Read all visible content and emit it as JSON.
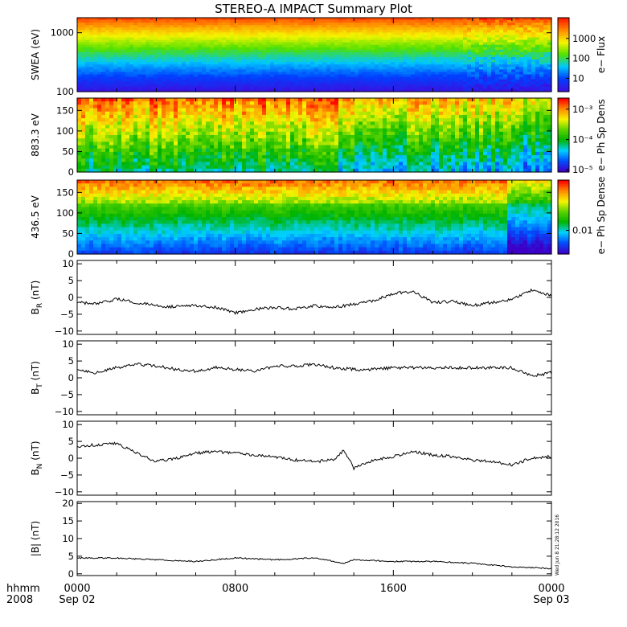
{
  "chart_data": {
    "title": "STEREO-A IMPACT Summary Plot",
    "stamp": "Wed Jun  8 21:28:12 2016",
    "x_corner": [
      "hhmm",
      "2008"
    ],
    "x_ticks": [
      {
        "hour": 0,
        "label": "0000",
        "sublabel": "Sep 02"
      },
      {
        "hour": 8,
        "label": "0800",
        "sublabel": ""
      },
      {
        "hour": 16,
        "label": "1600",
        "sublabel": ""
      },
      {
        "hour": 24,
        "label": "0000",
        "sublabel": "Sep 03"
      }
    ],
    "x_range_hours": [
      0,
      24
    ],
    "panels": [
      {
        "id": "swea",
        "type": "heatmap",
        "ylabel": "SWEA (eV)",
        "ylog": true,
        "ylim": [
          100,
          1800
        ],
        "yticks": [
          "1000",
          "100"
        ],
        "ytick_values": [
          1000,
          100
        ],
        "colorbar": {
          "label": "e− Flux",
          "ticks": [
            "1000",
            "100",
            "10"
          ],
          "tick_fractions": [
            0.72,
            0.45,
            0.18
          ]
        },
        "color_stops": [
          "#ff2a00",
          "#ff8a00",
          "#f0f000",
          "#4cf000",
          "#00c8ff",
          "#0040ff",
          "#3c10f0"
        ]
      },
      {
        "id": "pad883",
        "type": "heatmap",
        "ylabel": "883.3 eV",
        "ylim": [
          0,
          180
        ],
        "yticks": [
          "150",
          "100",
          "50",
          "0"
        ],
        "ytick_values": [
          150,
          100,
          50,
          0
        ],
        "colorbar": {
          "label": "e− Ph Sp Dens",
          "ticks": [
            "10⁻³",
            "10⁻⁴",
            "10⁻⁵"
          ],
          "tick_fractions": [
            0.85,
            0.44,
            0.03
          ]
        }
      },
      {
        "id": "pad436",
        "type": "heatmap",
        "ylabel": "436.5 eV",
        "ylim": [
          0,
          180
        ],
        "yticks": [
          "150",
          "100",
          "50",
          "0"
        ],
        "ytick_values": [
          150,
          100,
          50,
          0
        ],
        "colorbar": {
          "label": "e− Ph Sp Dense",
          "ticks": [
            "0.01"
          ],
          "tick_fractions": [
            0.32
          ]
        }
      },
      {
        "id": "br",
        "type": "line",
        "ylabel_base": "B",
        "ylabel_sub": "R",
        "ylabel_unit": " (nT)",
        "ylim": [
          -11,
          11
        ],
        "yticks": [
          "10",
          "5",
          "0",
          "−5",
          "−10"
        ],
        "ytick_values": [
          10,
          5,
          0,
          -5,
          -10
        ],
        "keypoints": [
          [
            0,
            -1.5
          ],
          [
            1,
            -2
          ],
          [
            2,
            -0.5
          ],
          [
            3,
            -1.5
          ],
          [
            4,
            -2.5
          ],
          [
            5,
            -2.8
          ],
          [
            6,
            -2.3
          ],
          [
            7,
            -3
          ],
          [
            8,
            -4.5
          ],
          [
            9,
            -3.5
          ],
          [
            10,
            -3
          ],
          [
            11,
            -3.5
          ],
          [
            12,
            -2.5
          ],
          [
            13,
            -3
          ],
          [
            14,
            -2
          ],
          [
            15,
            -1
          ],
          [
            16,
            1.2
          ],
          [
            17,
            1.8
          ],
          [
            18,
            -1.5
          ],
          [
            19,
            -1.2
          ],
          [
            20,
            -2.5
          ],
          [
            21,
            -1.5
          ],
          [
            22,
            -0.5
          ],
          [
            23,
            2.2
          ],
          [
            24,
            0.5
          ]
        ]
      },
      {
        "id": "bt",
        "type": "line",
        "ylabel_base": "B",
        "ylabel_sub": "T",
        "ylabel_unit": " (nT)",
        "ylim": [
          -11,
          11
        ],
        "yticks": [
          "10",
          "5",
          "0",
          "−5",
          "−10"
        ],
        "ytick_values": [
          10,
          5,
          0,
          -5,
          -10
        ],
        "keypoints": [
          [
            0,
            2.5
          ],
          [
            1,
            1.5
          ],
          [
            2,
            3
          ],
          [
            3,
            4
          ],
          [
            4,
            3.5
          ],
          [
            5,
            2.5
          ],
          [
            6,
            2
          ],
          [
            7,
            3
          ],
          [
            8,
            2.5
          ],
          [
            9,
            2
          ],
          [
            10,
            3.5
          ],
          [
            11,
            3.5
          ],
          [
            12,
            4
          ],
          [
            13,
            3
          ],
          [
            14,
            2.5
          ],
          [
            15,
            2.5
          ],
          [
            16,
            3
          ],
          [
            17,
            3
          ],
          [
            18,
            3
          ],
          [
            19,
            3
          ],
          [
            20,
            3
          ],
          [
            21,
            3
          ],
          [
            22,
            3
          ],
          [
            23,
            0.5
          ],
          [
            24,
            1.5
          ]
        ]
      },
      {
        "id": "bn",
        "type": "line",
        "ylabel_base": "B",
        "ylabel_sub": "N",
        "ylabel_unit": " (nT)",
        "ylim": [
          -11,
          11
        ],
        "yticks": [
          "10",
          "5",
          "0",
          "−5",
          "−10"
        ],
        "ytick_values": [
          10,
          5,
          0,
          -5,
          -10
        ],
        "keypoints": [
          [
            0,
            3.5
          ],
          [
            1,
            4
          ],
          [
            2,
            4.5
          ],
          [
            3,
            1.5
          ],
          [
            4,
            -1
          ],
          [
            5,
            0
          ],
          [
            6,
            1.5
          ],
          [
            7,
            2
          ],
          [
            8,
            1.5
          ],
          [
            9,
            1
          ],
          [
            10,
            0.5
          ],
          [
            11,
            -0.5
          ],
          [
            12,
            -1
          ],
          [
            13,
            -0.5
          ],
          [
            13.5,
            2.5
          ],
          [
            14,
            -3
          ],
          [
            15,
            -0.5
          ],
          [
            16,
            0.5
          ],
          [
            17,
            2
          ],
          [
            18,
            1
          ],
          [
            19,
            0.5
          ],
          [
            20,
            -0.5
          ],
          [
            21,
            -1
          ],
          [
            22,
            -2
          ],
          [
            23,
            0
          ],
          [
            24,
            0.5
          ]
        ]
      },
      {
        "id": "bmag",
        "type": "line",
        "ylabel": "|B| (nT)",
        "ylim": [
          -0.5,
          20.5
        ],
        "yticks": [
          "20",
          "15",
          "10",
          "5",
          "0"
        ],
        "ytick_values": [
          20,
          15,
          10,
          5,
          0
        ],
        "keypoints": [
          [
            0,
            4.5
          ],
          [
            2,
            4.5
          ],
          [
            4,
            4
          ],
          [
            6,
            3.5
          ],
          [
            8,
            4.5
          ],
          [
            10,
            4
          ],
          [
            12,
            4.5
          ],
          [
            13.5,
            3
          ],
          [
            14,
            4
          ],
          [
            16,
            3.5
          ],
          [
            18,
            3.5
          ],
          [
            20,
            3
          ],
          [
            22,
            2
          ],
          [
            24,
            1.5
          ]
        ]
      }
    ]
  }
}
